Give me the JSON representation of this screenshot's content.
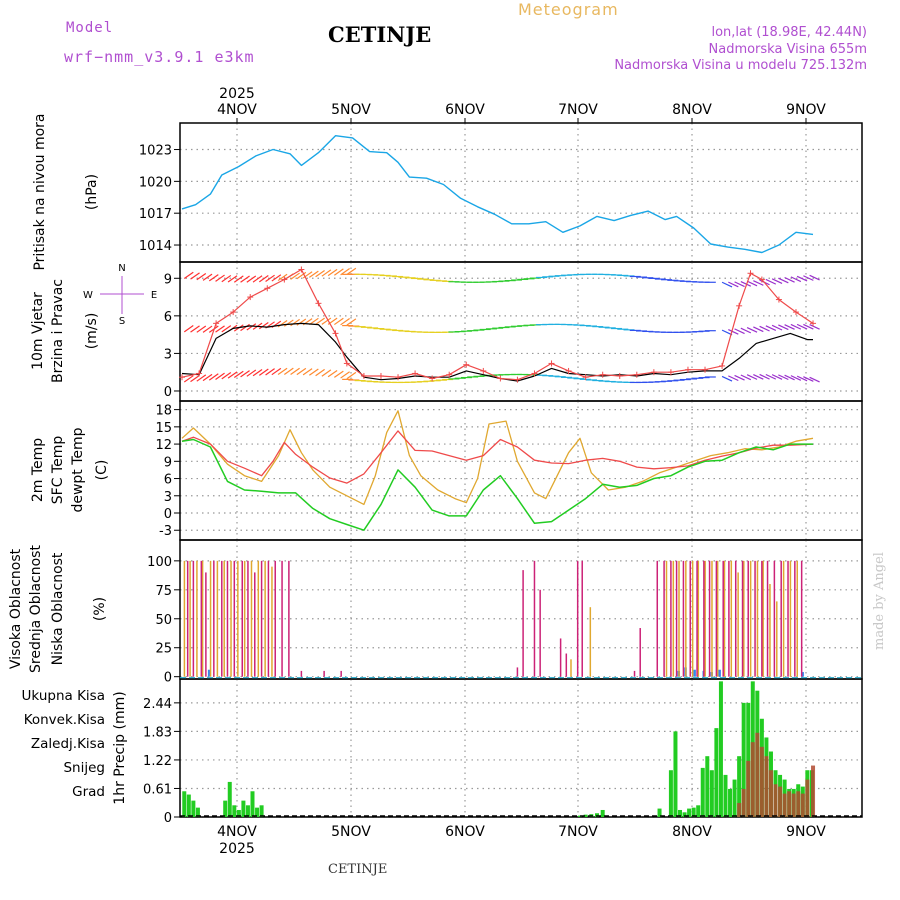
{
  "header": {
    "model_label": "Model",
    "model_name": "wrf−nmm_v3.9.1 e3km",
    "station": "CETINJE",
    "title": "Meteogram",
    "coords": "lon,lat (18.98E, 42.44N)",
    "elevation": "Nadmorska Visina 655m",
    "model_elevation": "Nadmorska Visina u modelu 725.132m"
  },
  "footer": {
    "station": "CETINJE",
    "credit": "made by Angel"
  },
  "colors": {
    "pressure": "#1aa6e6",
    "temp2m": "#ef4a4a",
    "sfc": "#e0a830",
    "dewpt": "#22cc22",
    "high_cloud": "#3388ee",
    "mid_cloud": "#e0a830",
    "low_cloud": "#cc2277",
    "total_precip": "#22cc22",
    "conv_precip": "#ef4a4a",
    "snow": "#4466ee",
    "hail": "#22cccc"
  },
  "chart_data": [
    {
      "type": "line",
      "id": "pressure",
      "ylabel": [
        "Pritisak na nivou mora",
        "(hPa)"
      ],
      "yticks": [
        1014,
        1017,
        1020,
        1023
      ],
      "ylim": [
        1012.4,
        1025.5
      ],
      "x_days": [
        0,
        0.12,
        0.25,
        0.35,
        0.5,
        0.65,
        0.8,
        0.95,
        1.05,
        1.2,
        1.35,
        1.5,
        1.65,
        1.8,
        1.9,
        2.0,
        2.15,
        2.3,
        2.45,
        2.6,
        2.75,
        2.9,
        3.05,
        3.2,
        3.35,
        3.5,
        3.65,
        3.8,
        3.95,
        4.1,
        4.25,
        4.35,
        4.5,
        4.65,
        4.8,
        4.95,
        5.1,
        5.25,
        5.4,
        5.55
      ],
      "values": [
        1017.4,
        1017.8,
        1018.8,
        1020.6,
        1021.4,
        1022.4,
        1023.0,
        1022.6,
        1021.5,
        1022.7,
        1024.3,
        1024.1,
        1022.8,
        1022.7,
        1021.8,
        1020.4,
        1020.3,
        1019.7,
        1018.4,
        1017.6,
        1016.9,
        1016.0,
        1016.0,
        1016.2,
        1015.2,
        1015.8,
        1016.7,
        1016.3,
        1016.8,
        1017.2,
        1016.4,
        1016.7,
        1015.6,
        1014.1,
        1013.8,
        1013.6,
        1013.3,
        1014.0,
        1015.2,
        1015.0
      ]
    },
    {
      "type": "line",
      "id": "wind",
      "ylabel": [
        "10m Vjetar",
        "Brzina i Pravac",
        "(m/s)"
      ],
      "compass": [
        "N",
        "W",
        "E",
        "S"
      ],
      "yticks": [
        0,
        3,
        6,
        9
      ],
      "ylim": [
        -0.8,
        10.3
      ],
      "series": [
        {
          "name": "brzina",
          "x_days": [
            0,
            0.15,
            0.3,
            0.45,
            0.6,
            0.75,
            0.9,
            1.05,
            1.2,
            1.35,
            1.45,
            1.6,
            1.75,
            1.9,
            2.05,
            2.2,
            2.35,
            2.5,
            2.65,
            2.8,
            2.95,
            3.1,
            3.25,
            3.4,
            3.55,
            3.7,
            3.85,
            4.0,
            4.15,
            4.3,
            4.45,
            4.6,
            4.75,
            4.9,
            5.05,
            5.2,
            5.35,
            5.5,
            5.55
          ],
          "values": [
            1.4,
            1.3,
            4.2,
            5.0,
            5.2,
            5.1,
            5.3,
            5.4,
            5.3,
            3.9,
            2.7,
            1.1,
            0.9,
            1.0,
            1.2,
            1.1,
            1.1,
            1.6,
            1.3,
            1.0,
            0.8,
            1.2,
            1.8,
            1.4,
            1.3,
            1.2,
            1.3,
            1.2,
            1.4,
            1.3,
            1.5,
            1.6,
            1.6,
            2.6,
            3.8,
            4.2,
            4.6,
            4.1,
            4.1
          ]
        },
        {
          "name": "udari",
          "x_days": [
            0,
            0.15,
            0.3,
            0.45,
            0.6,
            0.75,
            0.9,
            1.05,
            1.2,
            1.35,
            1.45,
            1.6,
            1.75,
            1.9,
            2.05,
            2.2,
            2.35,
            2.5,
            2.65,
            2.8,
            2.95,
            3.1,
            3.25,
            3.4,
            3.55,
            3.7,
            3.85,
            4.0,
            4.15,
            4.3,
            4.45,
            4.6,
            4.75,
            4.9,
            5.0,
            5.1,
            5.25,
            5.4,
            5.55
          ],
          "values": [
            1.1,
            1.4,
            5.4,
            6.3,
            7.5,
            8.2,
            8.9,
            9.7,
            7.0,
            4.6,
            2.2,
            1.2,
            1.2,
            1.1,
            1.4,
            1.0,
            1.3,
            2.1,
            1.6,
            1.0,
            0.9,
            1.4,
            2.2,
            1.6,
            1.1,
            1.3,
            1.2,
            1.3,
            1.5,
            1.5,
            1.7,
            1.7,
            2.0,
            6.8,
            9.4,
            8.9,
            7.3,
            6.3,
            5.4
          ]
        }
      ]
    },
    {
      "type": "line",
      "id": "temperature",
      "ylabel": [
        "2m Temp",
        "SFC Temp",
        "dewpt Temp",
        "(C)"
      ],
      "yticks": [
        -3,
        0,
        3,
        6,
        9,
        12,
        15,
        18
      ],
      "ylim": [
        -4.7,
        19.5
      ],
      "series": [
        {
          "name": "2m Temp",
          "x_days": [
            0,
            0.1,
            0.25,
            0.4,
            0.55,
            0.7,
            0.8,
            0.9,
            1.0,
            1.15,
            1.3,
            1.45,
            1.6,
            1.75,
            1.9,
            2.05,
            2.2,
            2.35,
            2.5,
            2.65,
            2.8,
            2.95,
            3.1,
            3.25,
            3.4,
            3.55,
            3.7,
            3.85,
            4.0,
            4.15,
            4.3,
            4.45,
            4.6,
            4.75,
            4.9,
            5.05,
            5.2,
            5.35,
            5.55
          ],
          "values": [
            12.5,
            13.2,
            12.0,
            9.0,
            7.8,
            6.5,
            9.0,
            12.3,
            10.2,
            8.0,
            6.1,
            5.2,
            6.8,
            10.5,
            14.3,
            10.9,
            10.8,
            10.0,
            9.2,
            10.0,
            12.8,
            11.5,
            9.2,
            8.7,
            8.6,
            9.2,
            9.5,
            9.0,
            8.0,
            7.7,
            7.9,
            8.2,
            9.2,
            9.9,
            10.5,
            11.3,
            11.8,
            11.8,
            12.0
          ]
        },
        {
          "name": "SFC Temp",
          "x_days": [
            0,
            0.1,
            0.25,
            0.4,
            0.55,
            0.7,
            0.85,
            0.95,
            1.05,
            1.15,
            1.3,
            1.45,
            1.6,
            1.7,
            1.8,
            1.9,
            2.0,
            2.1,
            2.25,
            2.4,
            2.5,
            2.6,
            2.7,
            2.85,
            2.95,
            3.1,
            3.2,
            3.3,
            3.4,
            3.5,
            3.6,
            3.75,
            3.9,
            4.05,
            4.2,
            4.35,
            4.5,
            4.65,
            4.8,
            4.95,
            5.1,
            5.25,
            5.4,
            5.55
          ],
          "values": [
            13.0,
            14.8,
            12.0,
            8.5,
            6.5,
            5.5,
            10.0,
            14.5,
            10.5,
            7.5,
            4.5,
            3.0,
            1.5,
            6.5,
            14.0,
            17.8,
            10.0,
            6.5,
            4.0,
            2.5,
            1.8,
            6.0,
            15.5,
            16.0,
            9.0,
            3.5,
            2.5,
            6.5,
            10.5,
            13.0,
            7.0,
            4.0,
            4.5,
            5.5,
            7.0,
            8.0,
            9.0,
            10.0,
            10.5,
            11.2,
            11.0,
            11.5,
            12.5,
            13.0
          ]
        },
        {
          "name": "dewpt Temp",
          "x_days": [
            0,
            0.1,
            0.25,
            0.4,
            0.55,
            0.7,
            0.85,
            1.0,
            1.15,
            1.3,
            1.45,
            1.6,
            1.75,
            1.9,
            2.05,
            2.2,
            2.35,
            2.5,
            2.65,
            2.8,
            2.95,
            3.1,
            3.25,
            3.4,
            3.55,
            3.7,
            3.85,
            4.0,
            4.15,
            4.3,
            4.45,
            4.6,
            4.75,
            4.9,
            5.05,
            5.2,
            5.35,
            5.55
          ],
          "values": [
            12.5,
            12.8,
            11.5,
            5.5,
            4.0,
            3.8,
            3.5,
            3.5,
            0.8,
            -1.0,
            -2.0,
            -3.0,
            1.5,
            7.5,
            4.5,
            0.5,
            -0.5,
            -0.5,
            4.0,
            6.5,
            2.5,
            -1.8,
            -1.5,
            0.5,
            2.5,
            5.0,
            4.5,
            4.8,
            6.0,
            6.5,
            8.0,
            9.0,
            9.2,
            10.5,
            11.5,
            11.0,
            12.0,
            12.0
          ]
        }
      ]
    },
    {
      "type": "bar",
      "id": "cloud",
      "ylabel": [
        "Visoka Oblacnost",
        "Srednja Oblacnost",
        "Niska Oblacnost",
        "(%)"
      ],
      "yticks": [
        0,
        25,
        50,
        75,
        100
      ],
      "ylim": [
        -2,
        118
      ],
      "series": [
        {
          "name": "Visoka Oblacnost",
          "x_days": [
            0.23,
            4.36,
            4.42,
            4.5,
            4.58,
            4.65,
            4.72,
            5.45
          ],
          "values": [
            6,
            5,
            8,
            6,
            5,
            4,
            6,
            4
          ]
        },
        {
          "name": "Srednja Oblacnost",
          "x_days": [
            0.03,
            0.08,
            0.14,
            0.19,
            0.26,
            0.32,
            0.38,
            0.44,
            0.5,
            0.56,
            0.62,
            0.68,
            0.74,
            0.8,
            3.43,
            3.6,
            4.27,
            4.33,
            4.38,
            4.44,
            4.5,
            4.55,
            4.61,
            4.67,
            4.72,
            4.78,
            4.84,
            4.9,
            4.95,
            5.01,
            5.07,
            5.12,
            5.18,
            5.24,
            5.3,
            5.36,
            5.42
          ],
          "values": [
            100,
            100,
            100,
            100,
            100,
            100,
            100,
            100,
            100,
            100,
            100,
            100,
            100,
            95,
            15,
            60,
            100,
            100,
            100,
            100,
            100,
            100,
            100,
            100,
            100,
            100,
            100,
            90,
            100,
            100,
            100,
            100,
            80,
            65,
            100,
            100,
            100
          ]
        },
        {
          "name": "Niska Oblacnost",
          "x_days": [
            0.05,
            0.1,
            0.17,
            0.21,
            0.28,
            0.35,
            0.4,
            0.46,
            0.53,
            0.58,
            0.64,
            0.7,
            0.76,
            0.82,
            0.88,
            0.94,
            1.05,
            1.25,
            1.4,
            2.95,
            3.0,
            3.1,
            3.15,
            3.33,
            3.38,
            3.48,
            3.52,
            3.98,
            4.03,
            4.18,
            4.24,
            4.3,
            4.35,
            4.41,
            4.47,
            4.53,
            4.59,
            4.64,
            4.7,
            4.76,
            4.81,
            4.87,
            4.93,
            4.98,
            5.04,
            5.1,
            5.15,
            5.21,
            5.27,
            5.33,
            5.39,
            5.45
          ],
          "values": [
            100,
            100,
            100,
            90,
            100,
            100,
            100,
            100,
            100,
            100,
            90,
            100,
            100,
            100,
            100,
            100,
            5,
            5,
            5,
            8,
            92,
            100,
            75,
            33,
            20,
            100,
            100,
            5,
            42,
            100,
            100,
            100,
            100,
            100,
            100,
            100,
            100,
            100,
            100,
            100,
            100,
            100,
            100,
            100,
            100,
            100,
            100,
            100,
            100,
            100,
            100,
            100
          ]
        }
      ]
    },
    {
      "type": "bar",
      "id": "precip",
      "ylabel": [
        "1hr Precip",
        "(mm)"
      ],
      "legend": [
        "Ukupna Kisa",
        "Konvek.Kisa",
        "Zaledj.Kisa",
        "Snijeg",
        "Grad"
      ],
      "yticks": [
        0,
        0.61,
        1.22,
        1.83,
        2.44
      ],
      "ylim": [
        0,
        2.95
      ],
      "series": [
        {
          "name": "Ukupna Kisa",
          "x_days": [
            0.02,
            0.06,
            0.1,
            0.14,
            0.38,
            0.42,
            0.46,
            0.5,
            0.54,
            0.58,
            0.62,
            0.66,
            0.7,
            3.5,
            3.55,
            3.6,
            3.65,
            3.7,
            4.2,
            4.3,
            4.34,
            4.38,
            4.42,
            4.46,
            4.5,
            4.54,
            4.58,
            4.62,
            4.66,
            4.7,
            4.74,
            4.78,
            4.82,
            4.86,
            4.9,
            4.94,
            4.98,
            5.02,
            5.06,
            5.1,
            5.14,
            5.18,
            5.22,
            5.26,
            5.3,
            5.34,
            5.38,
            5.42,
            5.46,
            5.5,
            5.54
          ],
          "values": [
            0.55,
            0.48,
            0.35,
            0.2,
            0.35,
            0.75,
            0.25,
            0.15,
            0.35,
            0.25,
            0.55,
            0.2,
            0.25,
            0.03,
            0.05,
            0.06,
            0.08,
            0.15,
            0.18,
            1.0,
            1.83,
            0.15,
            0.1,
            0.18,
            0.2,
            0.25,
            1.05,
            1.3,
            1.0,
            1.9,
            2.9,
            0.9,
            0.6,
            0.8,
            1.3,
            2.44,
            2.44,
            2.9,
            2.7,
            2.1,
            1.7,
            1.4,
            1.0,
            0.9,
            0.8,
            0.6,
            0.6,
            0.7,
            0.65,
            1.0,
            1.0
          ]
        },
        {
          "name": "Konvek.Kisa",
          "x_days": [
            4.9,
            4.94,
            4.98,
            5.02,
            5.06,
            5.1,
            5.14,
            5.18,
            5.22,
            5.26,
            5.3,
            5.34,
            5.38,
            5.42,
            5.46,
            5.5,
            5.55
          ],
          "values": [
            0.3,
            0.6,
            1.2,
            1.6,
            1.8,
            1.5,
            1.3,
            1.0,
            0.7,
            0.65,
            0.5,
            0.55,
            0.5,
            0.55,
            0.5,
            0.8,
            1.1
          ]
        }
      ]
    }
  ],
  "axis_top": {
    "year": "2025",
    "dates": [
      "4NOV",
      "5NOV",
      "6NOV",
      "7NOV",
      "8NOV",
      "9NOV"
    ]
  },
  "axis_bottom": {
    "year": "2025",
    "dates": [
      "4NOV",
      "5NOV",
      "6NOV",
      "7NOV",
      "8NOV",
      "9NOV"
    ]
  }
}
